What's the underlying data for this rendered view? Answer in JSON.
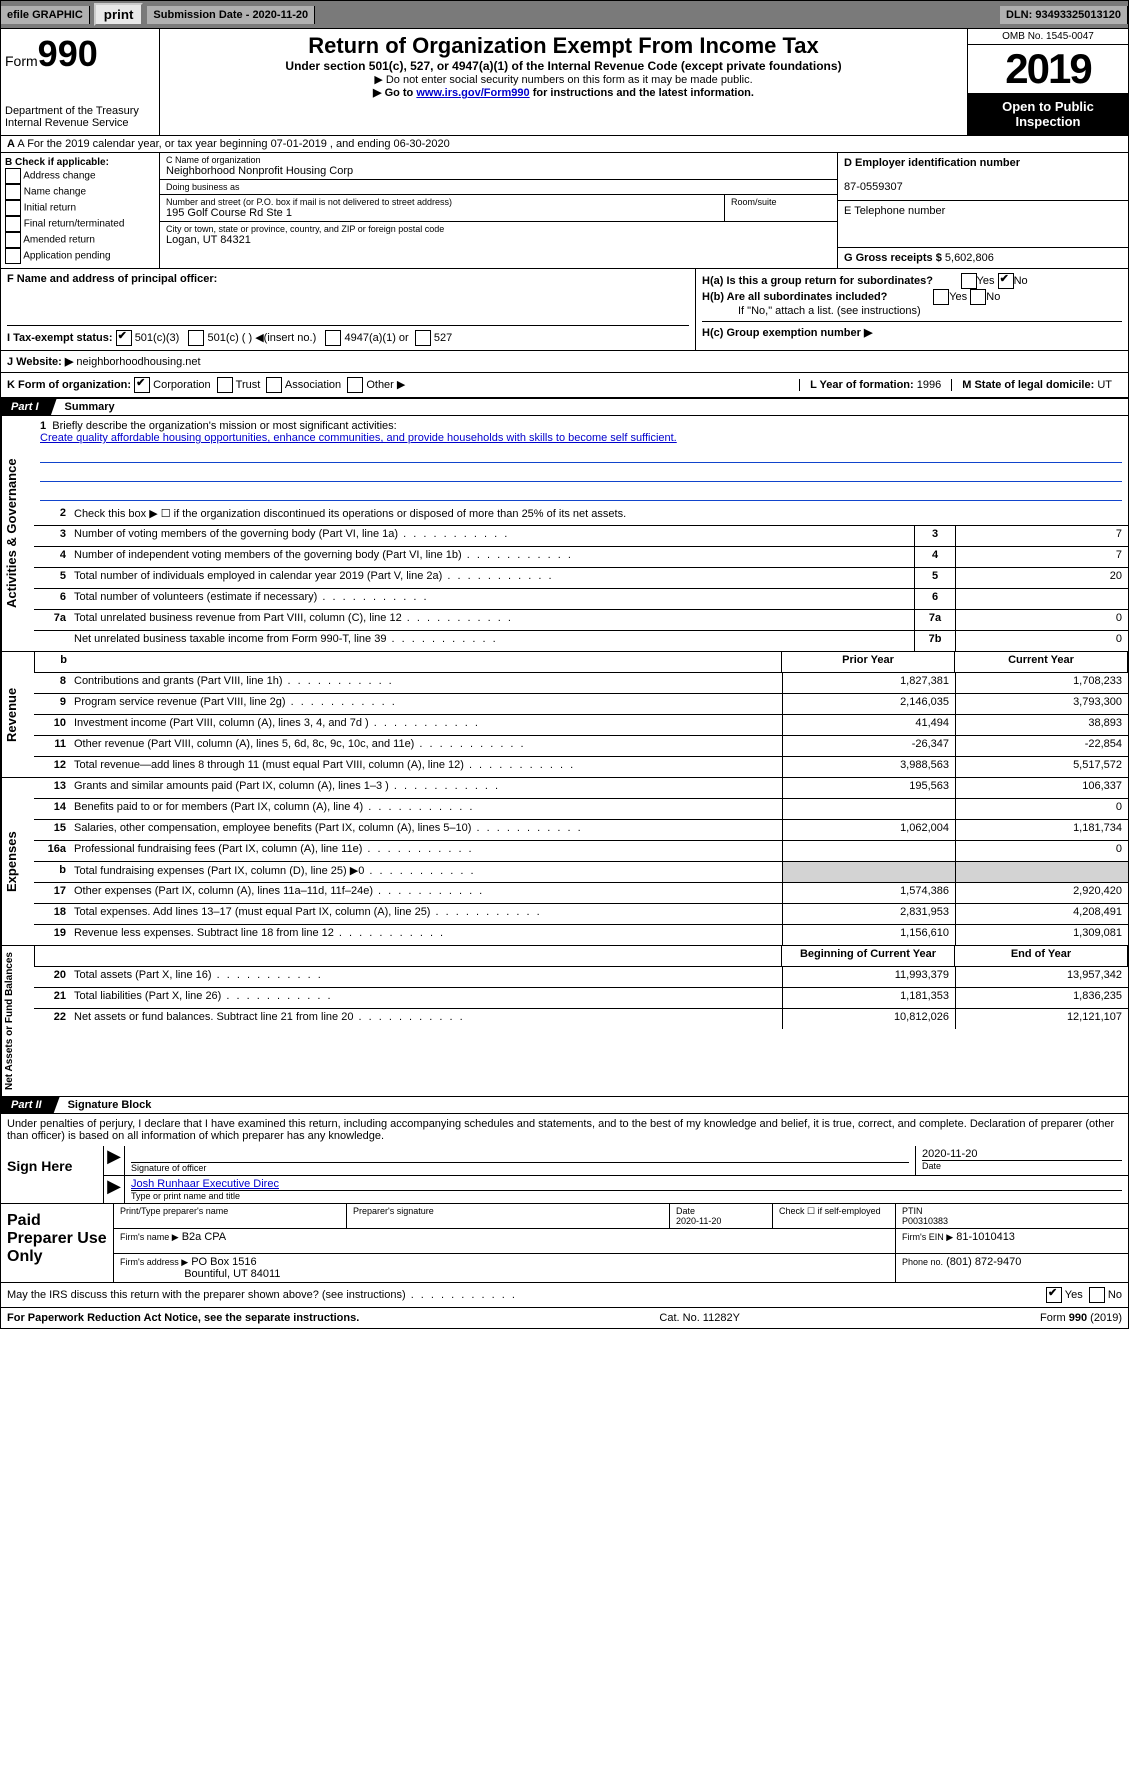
{
  "topbar": {
    "efile": "efile GRAPHIC",
    "print": "print",
    "subdate_label": "Submission Date - 2020-11-20",
    "dln": "DLN: 93493325013120"
  },
  "header": {
    "form_prefix": "Form",
    "form_num": "990",
    "dept": "Department of the Treasury Internal Revenue Service",
    "title": "Return of Organization Exempt From Income Tax",
    "sub": "Under section 501(c), 527, or 4947(a)(1) of the Internal Revenue Code (except private foundations)",
    "note1": "▶ Do not enter social security numbers on this form as it may be made public.",
    "note2_pre": "▶ Go to ",
    "note2_link": "www.irs.gov/Form990",
    "note2_post": " for instructions and the latest information.",
    "omb": "OMB No. 1545-0047",
    "year": "2019",
    "inspect": "Open to Public Inspection"
  },
  "row_a": "A For the 2019 calendar year, or tax year beginning 07-01-2019   , and ending 06-30-2020",
  "block_b": {
    "title": "B Check if applicable:",
    "opts": [
      "Address change",
      "Name change",
      "Initial return",
      "Final return/terminated",
      "Amended return",
      "Application pending"
    ]
  },
  "block_c": {
    "name_lbl": "C Name of organization",
    "name": "Neighborhood Nonprofit Housing Corp",
    "dba_lbl": "Doing business as",
    "dba": "",
    "street_lbl": "Number and street (or P.O. box if mail is not delivered to street address)",
    "street": "195 Golf Course Rd Ste 1",
    "suite_lbl": "Room/suite",
    "city_lbl": "City or town, state or province, country, and ZIP or foreign postal code",
    "city": "Logan, UT  84321"
  },
  "block_d": {
    "ein_lbl": "D Employer identification number",
    "ein": "87-0559307",
    "tel_lbl": "E Telephone number",
    "tel": "",
    "gross_lbl": "G Gross receipts $",
    "gross": "5,602,806"
  },
  "block_f": {
    "lbl": "F Name and address of principal officer:",
    "val": ""
  },
  "block_h": {
    "a": "H(a)  Is this a group return for subordinates?",
    "b": "H(b)  Are all subordinates included?",
    "b_note": "If \"No,\" attach a list. (see instructions)",
    "c": "H(c)  Group exemption number ▶"
  },
  "line_i": {
    "lbl": "I  Tax-exempt status:",
    "o1": "501(c)(3)",
    "o2": "501(c) (  ) ◀(insert no.)",
    "o3": "4947(a)(1) or",
    "o4": "527"
  },
  "line_j": {
    "lbl": "J  Website: ▶",
    "val": "neighborhoodhousing.net"
  },
  "line_k": {
    "lbl": "K Form of organization:",
    "o1": "Corporation",
    "o2": "Trust",
    "o3": "Association",
    "o4": "Other ▶",
    "l_lbl": "L Year of formation:",
    "l_val": "1996",
    "m_lbl": "M State of legal domicile:",
    "m_val": "UT"
  },
  "part1": {
    "tab": "Part I",
    "title": "Summary"
  },
  "mission": {
    "num": "1",
    "lbl": "Briefly describe the organization's mission or most significant activities:",
    "text": "Create quality affordable housing opportunities, enhance communities, and provide households with skills to become self sufficient."
  },
  "summary_rows": [
    {
      "n": "2",
      "d": "Check this box ▶ ☐  if the organization discontinued its operations or disposed of more than 25% of its net assets."
    },
    {
      "n": "3",
      "d": "Number of voting members of the governing body (Part VI, line 1a)",
      "bn": "3",
      "v": "7"
    },
    {
      "n": "4",
      "d": "Number of independent voting members of the governing body (Part VI, line 1b)",
      "bn": "4",
      "v": "7"
    },
    {
      "n": "5",
      "d": "Total number of individuals employed in calendar year 2019 (Part V, line 2a)",
      "bn": "5",
      "v": "20"
    },
    {
      "n": "6",
      "d": "Total number of volunteers (estimate if necessary)",
      "bn": "6",
      "v": ""
    },
    {
      "n": "7a",
      "d": "Total unrelated business revenue from Part VIII, column (C), line 12",
      "bn": "7a",
      "v": "0"
    },
    {
      "n": "",
      "d": "Net unrelated business taxable income from Form 990-T, line 39",
      "bn": "7b",
      "v": "0"
    }
  ],
  "col_headers": {
    "prior": "Prior Year",
    "current": "Current Year",
    "boy": "Beginning of Current Year",
    "eoy": "End of Year"
  },
  "revenue": [
    {
      "n": "8",
      "d": "Contributions and grants (Part VIII, line 1h)",
      "p": "1,827,381",
      "c": "1,708,233"
    },
    {
      "n": "9",
      "d": "Program service revenue (Part VIII, line 2g)",
      "p": "2,146,035",
      "c": "3,793,300"
    },
    {
      "n": "10",
      "d": "Investment income (Part VIII, column (A), lines 3, 4, and 7d )",
      "p": "41,494",
      "c": "38,893"
    },
    {
      "n": "11",
      "d": "Other revenue (Part VIII, column (A), lines 5, 6d, 8c, 9c, 10c, and 11e)",
      "p": "-26,347",
      "c": "-22,854"
    },
    {
      "n": "12",
      "d": "Total revenue—add lines 8 through 11 (must equal Part VIII, column (A), line 12)",
      "p": "3,988,563",
      "c": "5,517,572"
    }
  ],
  "expenses": [
    {
      "n": "13",
      "d": "Grants and similar amounts paid (Part IX, column (A), lines 1–3 )",
      "p": "195,563",
      "c": "106,337"
    },
    {
      "n": "14",
      "d": "Benefits paid to or for members (Part IX, column (A), line 4)",
      "p": "",
      "c": "0"
    },
    {
      "n": "15",
      "d": "Salaries, other compensation, employee benefits (Part IX, column (A), lines 5–10)",
      "p": "1,062,004",
      "c": "1,181,734"
    },
    {
      "n": "16a",
      "d": "Professional fundraising fees (Part IX, column (A), line 11e)",
      "p": "",
      "c": "0"
    },
    {
      "n": "b",
      "d": "Total fundraising expenses (Part IX, column (D), line 25) ▶0",
      "p": "shaded",
      "c": "shaded"
    },
    {
      "n": "17",
      "d": "Other expenses (Part IX, column (A), lines 11a–11d, 11f–24e)",
      "p": "1,574,386",
      "c": "2,920,420"
    },
    {
      "n": "18",
      "d": "Total expenses. Add lines 13–17 (must equal Part IX, column (A), line 25)",
      "p": "2,831,953",
      "c": "4,208,491"
    },
    {
      "n": "19",
      "d": "Revenue less expenses. Subtract line 18 from line 12",
      "p": "1,156,610",
      "c": "1,309,081"
    }
  ],
  "netassets": [
    {
      "n": "20",
      "d": "Total assets (Part X, line 16)",
      "p": "11,993,379",
      "c": "13,957,342"
    },
    {
      "n": "21",
      "d": "Total liabilities (Part X, line 26)",
      "p": "1,181,353",
      "c": "1,836,235"
    },
    {
      "n": "22",
      "d": "Net assets or fund balances. Subtract line 21 from line 20",
      "p": "10,812,026",
      "c": "12,121,107"
    }
  ],
  "part2": {
    "tab": "Part II",
    "title": "Signature Block"
  },
  "declare": "Under penalties of perjury, I declare that I have examined this return, including accompanying schedules and statements, and to the best of my knowledge and belief, it is true, correct, and complete. Declaration of preparer (other than officer) is based on all information of which preparer has any knowledge.",
  "sign": {
    "here": "Sign Here",
    "sig_lbl": "Signature of officer",
    "date": "2020-11-20",
    "date_lbl": "Date",
    "name": "Josh Runhaar  Executive Direc",
    "name_lbl": "Type or print name and title"
  },
  "prep": {
    "title": "Paid Preparer Use Only",
    "h1": "Print/Type preparer's name",
    "h2": "Preparer's signature",
    "h3": "Date",
    "date": "2020-11-20",
    "h4": "Check ☐ if self-employed",
    "h5": "PTIN",
    "ptin": "P00310383",
    "firm_lbl": "Firm's name    ▶",
    "firm": "B2a CPA",
    "ein_lbl": "Firm's EIN ▶",
    "ein": "81-1010413",
    "addr_lbl": "Firm's address ▶",
    "addr": "PO Box 1516",
    "addr2": "Bountiful, UT  84011",
    "phone_lbl": "Phone no.",
    "phone": "(801) 872-9470"
  },
  "discuss": "May the IRS discuss this return with the preparer shown above? (see instructions)",
  "footer": {
    "l": "For Paperwork Reduction Act Notice, see the separate instructions.",
    "m": "Cat. No. 11282Y",
    "r": "Form 990 (2019)"
  },
  "side_labels": {
    "ag": "Activities & Governance",
    "rev": "Revenue",
    "exp": "Expenses",
    "na": "Net Assets or Fund Balances"
  }
}
